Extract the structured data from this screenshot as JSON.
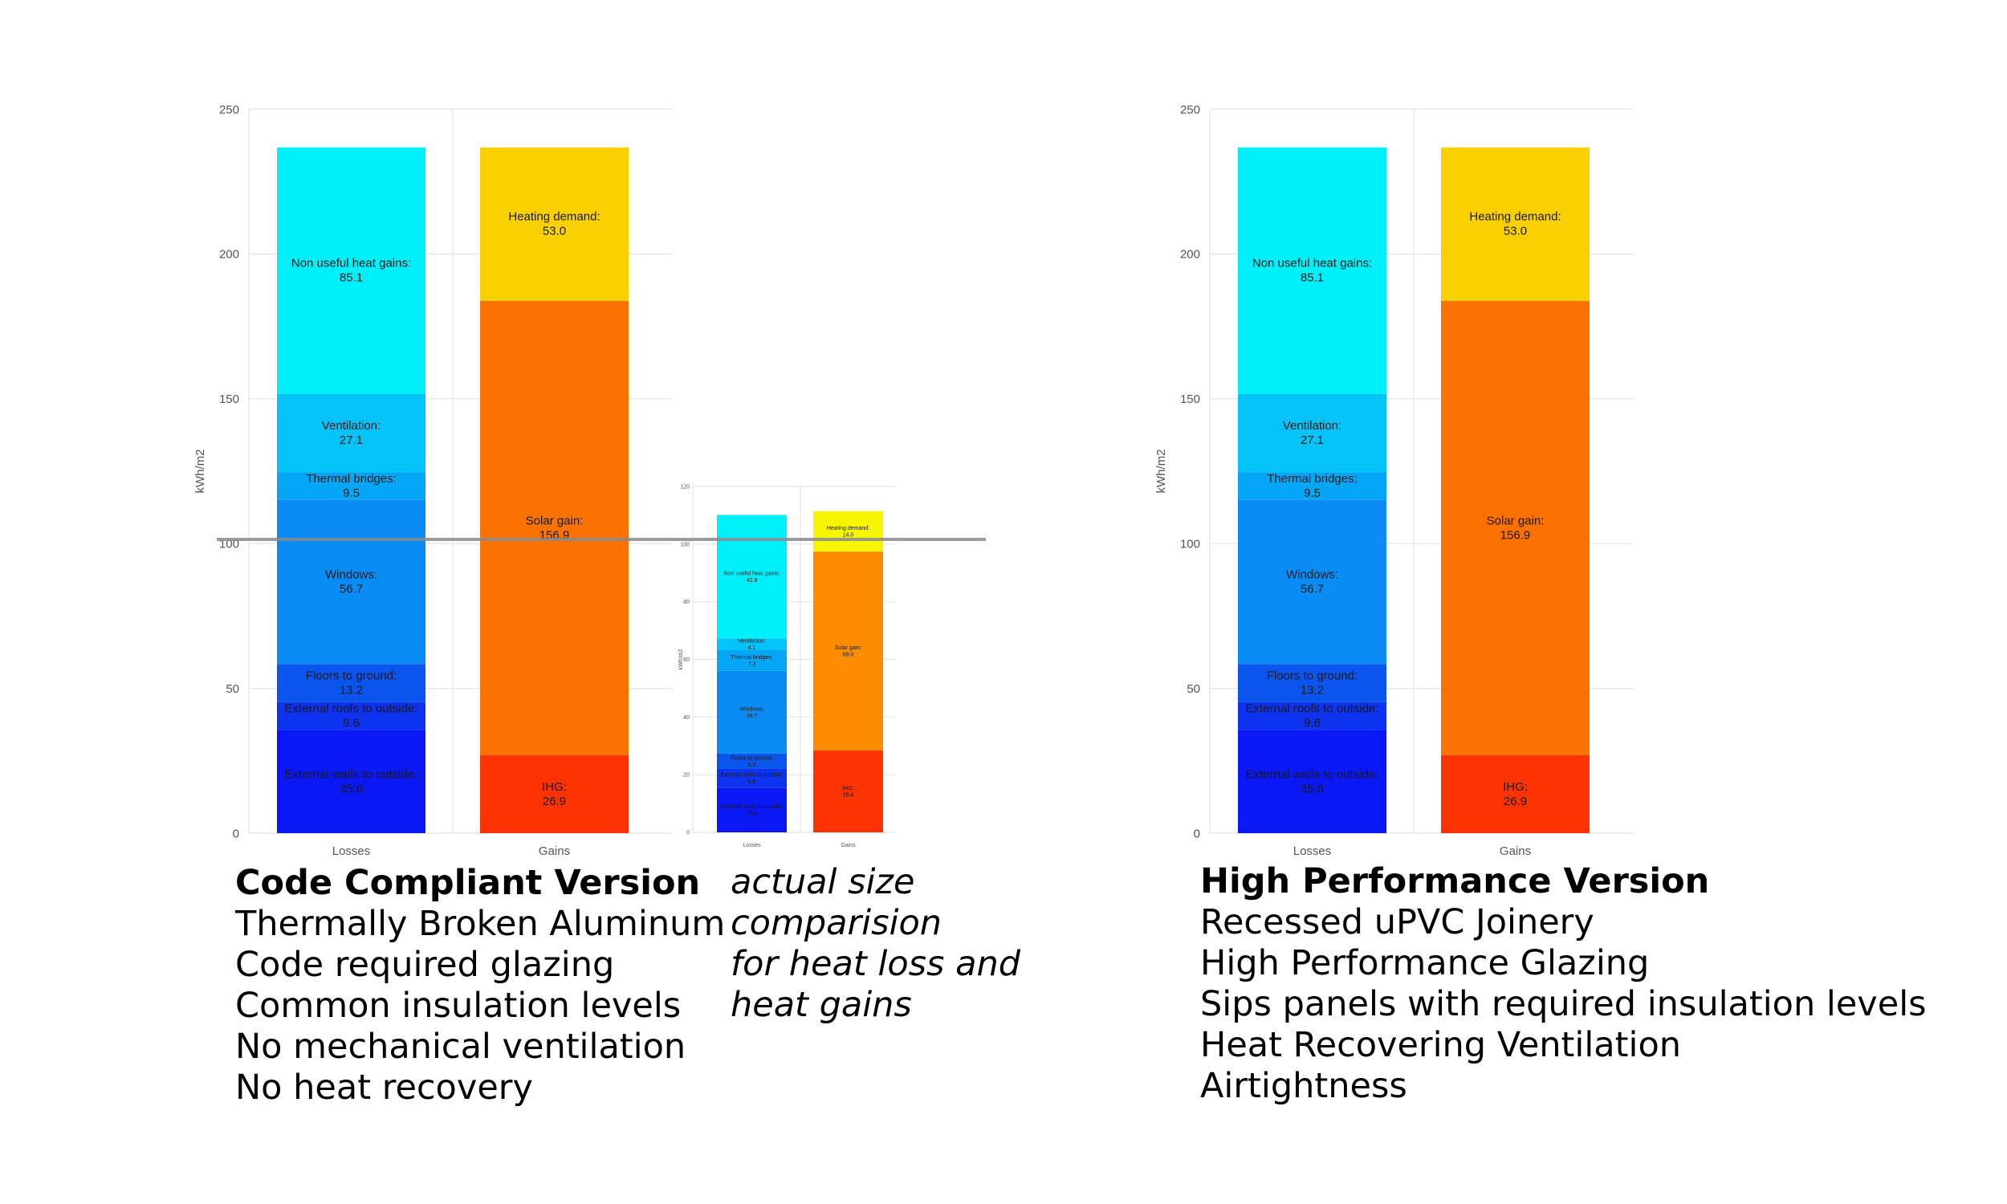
{
  "chart_data": [
    {
      "type": "bar",
      "stacked": true,
      "title": "",
      "xlabel": "",
      "ylabel": "kWh/m2",
      "ylim": [
        0,
        250
      ],
      "yticks": [
        0,
        50,
        100,
        150,
        200,
        250
      ],
      "categories": [
        "Losses",
        "Gains"
      ],
      "stacks": [
        {
          "category": "Losses",
          "segments": [
            {
              "name": "External walls to outside:",
              "label": "35.6",
              "value": 35.6,
              "color": "#0a18f5"
            },
            {
              "name": "External roofs to outside:",
              "label": "9.6",
              "value": 9.6,
              "color": "#0d33f0"
            },
            {
              "name": "Floors to ground:",
              "label": "13.2",
              "value": 13.2,
              "color": "#0b55ef"
            },
            {
              "name": "Windows:",
              "label": "56.7",
              "value": 56.7,
              "color": "#0a8cf5"
            },
            {
              "name": "Thermal bridges:",
              "label": "9.5",
              "value": 9.5,
              "color": "#05a6f6"
            },
            {
              "name": "Ventilation:",
              "label": "27.1",
              "value": 27.1,
              "color": "#03c3f8"
            },
            {
              "name": "Non useful heat gains:",
              "label": "85.1",
              "value": 85.1,
              "color": "#00f0fa"
            }
          ]
        },
        {
          "category": "Gains",
          "segments": [
            {
              "name": "IHG:",
              "label": "26.9",
              "value": 26.9,
              "color": "#fc3300"
            },
            {
              "name": "Solar gain:",
              "label": "156.9",
              "value": 156.9,
              "color": "#fc7200"
            },
            {
              "name": "Heating demand:",
              "label": "53.0",
              "value": 53.0,
              "color": "#fad100"
            }
          ]
        }
      ]
    },
    {
      "type": "bar",
      "stacked": true,
      "title": "",
      "xlabel": "",
      "ylabel": "kWh/m2",
      "ylim": [
        0,
        120
      ],
      "yticks": [
        0,
        20,
        40,
        60,
        80,
        100,
        120
      ],
      "categories": [
        "Losses",
        "Gains"
      ],
      "stacks": [
        {
          "category": "Losses",
          "segments": [
            {
              "name": "External walls to outside:",
              "label": "15.4",
              "value": 15.4,
              "color": "#0a18f5"
            },
            {
              "name": "External roofs to outside:",
              "label": "6.6",
              "value": 6.6,
              "color": "#0d33f0"
            },
            {
              "name": "Floors to ground:",
              "label": "5.3",
              "value": 5.3,
              "color": "#0b55ef"
            },
            {
              "name": "Windows:",
              "label": "28.7",
              "value": 28.7,
              "color": "#0a8cf5"
            },
            {
              "name": "Thermal bridges:",
              "label": "7.2",
              "value": 7.2,
              "color": "#05a6f6"
            },
            {
              "name": "Ventilation:",
              "label": "4.1",
              "value": 4.1,
              "color": "#03c3f8"
            },
            {
              "name": "Non useful heat gains:",
              "label": "42.8",
              "value": 42.8,
              "color": "#00f0fa"
            }
          ]
        },
        {
          "category": "Gains",
          "segments": [
            {
              "name": "IHG:",
              "label": "28.4",
              "value": 28.4,
              "color": "#fc3300"
            },
            {
              "name": "Solar gain:",
              "label": "69.0",
              "value": 69.0,
              "color": "#fc8c00"
            },
            {
              "name": "Heating demand:",
              "label": "14.0",
              "value": 14.0,
              "color": "#f7f500"
            }
          ]
        }
      ]
    },
    {
      "type": "bar",
      "stacked": true,
      "title": "",
      "xlabel": "",
      "ylabel": "kWh/m2",
      "ylim": [
        0,
        250
      ],
      "yticks": [
        0,
        50,
        100,
        150,
        200,
        250
      ],
      "categories": [
        "Losses",
        "Gains"
      ],
      "stacks": [
        {
          "category": "Losses",
          "segments": [
            {
              "name": "External walls to outside:",
              "label": "35.6",
              "value": 35.6,
              "color": "#0a18f5"
            },
            {
              "name": "External roofs to outside:",
              "label": "9.6",
              "value": 9.6,
              "color": "#0d33f0"
            },
            {
              "name": "Floors to ground:",
              "label": "13.2",
              "value": 13.2,
              "color": "#0b55ef"
            },
            {
              "name": "Windows:",
              "label": "56.7",
              "value": 56.7,
              "color": "#0a8cf5"
            },
            {
              "name": "Thermal bridges:",
              "label": "9.5",
              "value": 9.5,
              "color": "#05a6f6"
            },
            {
              "name": "Ventilation:",
              "label": "27.1",
              "value": 27.1,
              "color": "#03c3f8"
            },
            {
              "name": "Non useful heat gains:",
              "label": "85.1",
              "value": 85.1,
              "color": "#00f0fa"
            }
          ]
        },
        {
          "category": "Gains",
          "segments": [
            {
              "name": "IHG:",
              "label": "26.9",
              "value": 26.9,
              "color": "#fc3300"
            },
            {
              "name": "Solar gain:",
              "label": "156.9",
              "value": 156.9,
              "color": "#fc7200"
            },
            {
              "name": "Heating demand:",
              "label": "53.0",
              "value": 53.0,
              "color": "#fad100"
            }
          ]
        }
      ]
    }
  ],
  "captions": {
    "code": {
      "title": "Code Compliant Version",
      "lines": [
        "Thermally Broken Aluminum",
        "Code required glazing",
        "Common insulation levels",
        "No mechanical ventilation",
        "No heat recovery"
      ]
    },
    "actual": {
      "lines": [
        "actual size",
        "comparision",
        "for heat loss and",
        "heat gains"
      ]
    },
    "high": {
      "title": "High Performance Version",
      "lines": [
        "Recessed uPVC Joinery",
        "High Performance Glazing",
        "Sips panels with required insulation levels",
        "Heat Recovering Ventilation",
        "Airtightness"
      ]
    }
  },
  "colors": {
    "grid": "#e4e4e4",
    "axis_text": "#555555",
    "reference_line": "#8a8a8a"
  }
}
